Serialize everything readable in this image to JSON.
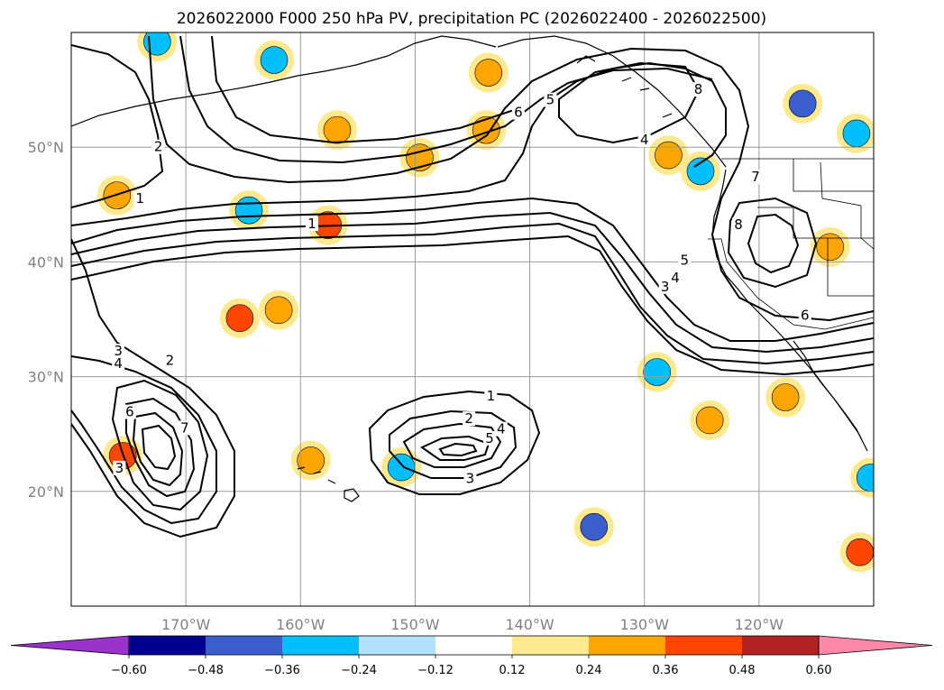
{
  "chart_data": {
    "type": "contour",
    "title": "2026022000 F000 250 hPa PV, precipitation PC (2026022400 - 2026022500)",
    "lon_range": [
      -180,
      -110
    ],
    "lat_range": [
      10,
      60
    ],
    "x_ticks": [
      -170,
      -160,
      -150,
      -140,
      -130,
      -120
    ],
    "x_tick_labels": [
      "170°W",
      "160°W",
      "150°W",
      "140°W",
      "130°W",
      "120°W"
    ],
    "y_ticks": [
      20,
      30,
      40,
      50
    ],
    "y_tick_labels": [
      "20°N",
      "30°N",
      "40°N",
      "50°N"
    ],
    "grid": true,
    "contour_variable": "250 hPa PV",
    "contour_labels": [
      {
        "text": "1",
        "lon": -174.0,
        "lat": 45.3
      },
      {
        "text": "2",
        "lon": -172.4,
        "lat": 49.8
      },
      {
        "text": "1",
        "lon": -159.0,
        "lat": 43.1
      },
      {
        "text": "6",
        "lon": -141.0,
        "lat": 52.8
      },
      {
        "text": "5",
        "lon": -138.2,
        "lat": 53.9
      },
      {
        "text": "4",
        "lon": -130.0,
        "lat": 50.4
      },
      {
        "text": "7",
        "lon": -120.3,
        "lat": 47.2
      },
      {
        "text": "8",
        "lon": -121.8,
        "lat": 43.0
      },
      {
        "text": "8",
        "lon": -125.3,
        "lat": 54.8
      },
      {
        "text": "5",
        "lon": -126.5,
        "lat": 39.9
      },
      {
        "text": "4",
        "lon": -127.3,
        "lat": 38.4
      },
      {
        "text": "3",
        "lon": -128.2,
        "lat": 37.6
      },
      {
        "text": "6",
        "lon": -116.0,
        "lat": 35.1
      },
      {
        "text": "3",
        "lon": -175.9,
        "lat": 32.0
      },
      {
        "text": "4",
        "lon": -175.9,
        "lat": 30.9
      },
      {
        "text": "2",
        "lon": -171.4,
        "lat": 31.2
      },
      {
        "text": "6",
        "lon": -174.9,
        "lat": 26.7
      },
      {
        "text": "7",
        "lon": -170.1,
        "lat": 25.3
      },
      {
        "text": "3",
        "lon": -175.8,
        "lat": 21.8
      },
      {
        "text": "1",
        "lon": -143.4,
        "lat": 28.1
      },
      {
        "text": "2",
        "lon": -145.3,
        "lat": 26.1
      },
      {
        "text": "4",
        "lon": -142.5,
        "lat": 25.2
      },
      {
        "text": "5",
        "lon": -143.5,
        "lat": 24.4
      },
      {
        "text": "3",
        "lon": -145.2,
        "lat": 20.9
      }
    ],
    "fill_variable": "precipitation PC",
    "colorbar": {
      "levels": [
        -0.6,
        -0.48,
        -0.36,
        -0.24,
        -0.12,
        0.12,
        0.24,
        0.36,
        0.48,
        0.6
      ],
      "labels": [
        "−0.60",
        "−0.48",
        "−0.36",
        "−0.24",
        "−0.12",
        "0.12",
        "0.24",
        "0.36",
        "0.48",
        "0.60"
      ],
      "colors": [
        "#9933cc",
        "#000090",
        "#3a5fcd",
        "#00bfff",
        "#b0e2ff",
        "#ffffff",
        "#ffe98f",
        "#ffa500",
        "#ff4500",
        "#b22222",
        "#ff88aa"
      ],
      "extend": "both"
    },
    "shaded_regions": [
      {
        "lon": -172.5,
        "lat": 59.2,
        "color": "#00bfff"
      },
      {
        "lon": -162.3,
        "lat": 57.6,
        "color": "#00bfff"
      },
      {
        "lon": -143.6,
        "lat": 56.5,
        "color": "#ffa500"
      },
      {
        "lon": -156.8,
        "lat": 51.5,
        "color": "#ffa500"
      },
      {
        "lon": -143.8,
        "lat": 51.5,
        "color": "#ffa500"
      },
      {
        "lon": -149.6,
        "lat": 49.1,
        "color": "#ffa500"
      },
      {
        "lon": -176.0,
        "lat": 45.8,
        "color": "#ffa500"
      },
      {
        "lon": -164.5,
        "lat": 44.5,
        "color": "#00bfff"
      },
      {
        "lon": -157.6,
        "lat": 43.2,
        "color": "#ff4500"
      },
      {
        "lon": -165.3,
        "lat": 35.1,
        "color": "#ff4500"
      },
      {
        "lon": -161.9,
        "lat": 35.8,
        "color": "#ffa500"
      },
      {
        "lon": -127.9,
        "lat": 49.3,
        "color": "#ffa500"
      },
      {
        "lon": -125.1,
        "lat": 47.9,
        "color": "#00bfff"
      },
      {
        "lon": -116.2,
        "lat": 53.8,
        "color": "#3a5fcd"
      },
      {
        "lon": -111.5,
        "lat": 51.2,
        "color": "#00bfff"
      },
      {
        "lon": -113.8,
        "lat": 41.3,
        "color": "#ffa500"
      },
      {
        "lon": -128.9,
        "lat": 30.4,
        "color": "#00bfff"
      },
      {
        "lon": -124.3,
        "lat": 26.2,
        "color": "#ffa500"
      },
      {
        "lon": -117.7,
        "lat": 28.2,
        "color": "#ffa500"
      },
      {
        "lon": -175.5,
        "lat": 23.1,
        "color": "#ff4500"
      },
      {
        "lon": -159.1,
        "lat": 22.7,
        "color": "#ffa500"
      },
      {
        "lon": -151.2,
        "lat": 22.1,
        "color": "#00bfff"
      },
      {
        "lon": -134.4,
        "lat": 16.9,
        "color": "#3a5fcd"
      },
      {
        "lon": -111.2,
        "lat": 14.7,
        "color": "#ff4500"
      },
      {
        "lon": -110.3,
        "lat": 21.2,
        "color": "#00bfff"
      }
    ]
  }
}
